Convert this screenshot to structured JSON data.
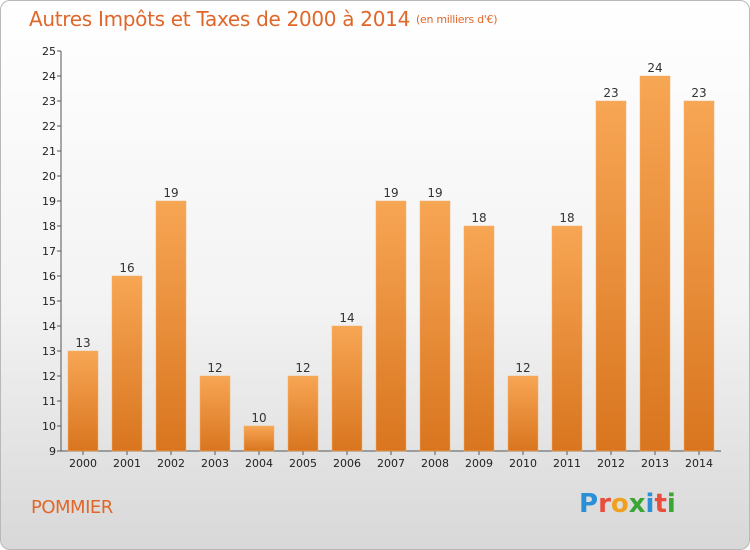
{
  "title": "Autres Impôts et Taxes de 2000 à 2014",
  "unit": "(en milliers d'€)",
  "place": "POMMIER",
  "logo": "Proxiti",
  "colors": {
    "accent": "#e0672a",
    "bar_top": "#f7a654",
    "bar_bottom": "#d9751f"
  },
  "chart_data": {
    "type": "bar",
    "categories": [
      "2000",
      "2001",
      "2002",
      "2003",
      "2004",
      "2005",
      "2006",
      "2007",
      "2008",
      "2009",
      "2010",
      "2011",
      "2012",
      "2013",
      "2014"
    ],
    "values": [
      13,
      16,
      19,
      12,
      10,
      12,
      14,
      19,
      19,
      18,
      12,
      18,
      23,
      24,
      23
    ],
    "ylim": [
      9,
      25
    ],
    "yticks": [
      9,
      10,
      11,
      12,
      13,
      14,
      15,
      16,
      17,
      18,
      19,
      20,
      21,
      22,
      23,
      24,
      25
    ],
    "grid": false,
    "data_labels": true
  }
}
